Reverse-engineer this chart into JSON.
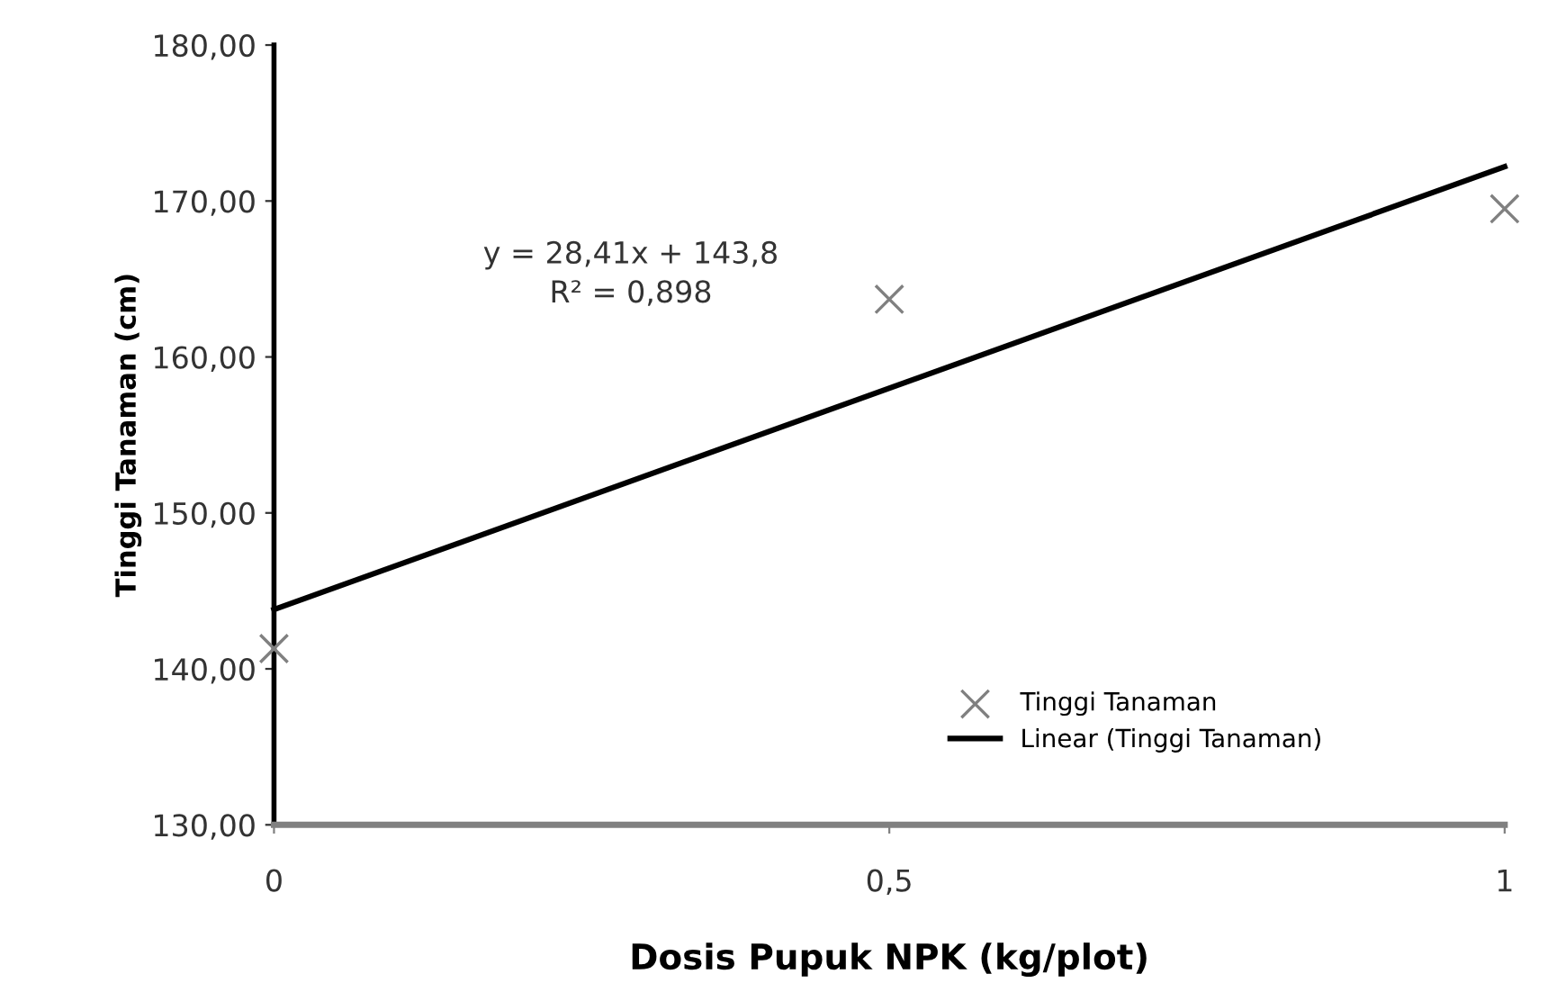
{
  "chart_data": {
    "type": "scatter",
    "xlabel": "Dosis Pupuk NPK (kg/plot)",
    "ylabel": "Tinggi Tanaman (cm)",
    "x": [
      0,
      0.5,
      1
    ],
    "series": [
      {
        "name": "Tinggi Tanaman",
        "color": "#808080",
        "marker": "cross",
        "values": [
          141.3,
          163.7,
          169.5
        ]
      },
      {
        "name": "Linear (Tinggi Tanaman)",
        "type": "line",
        "color": "#000000",
        "x": [
          0,
          1
        ],
        "values": [
          143.8,
          172.2
        ],
        "line_style": "solid",
        "marker": "none"
      }
    ],
    "xlim": [
      0,
      1
    ],
    "ylim": [
      130,
      180
    ],
    "xticks": [
      0,
      {
        "value": 0.5,
        "label": "0,5"
      },
      1
    ],
    "yticks": [
      {
        "value": 130,
        "label": "130,00"
      },
      {
        "value": 140,
        "label": "140,00"
      },
      {
        "value": 150,
        "label": "150,00"
      },
      {
        "value": 160,
        "label": "160,00"
      },
      {
        "value": 170,
        "label": "170,00"
      },
      {
        "value": 180,
        "label": "180,00"
      }
    ],
    "annotations": [
      "y = 28,41x + 143,8",
      "R² = 0,898"
    ],
    "legend": "bottom right",
    "grid": false
  }
}
